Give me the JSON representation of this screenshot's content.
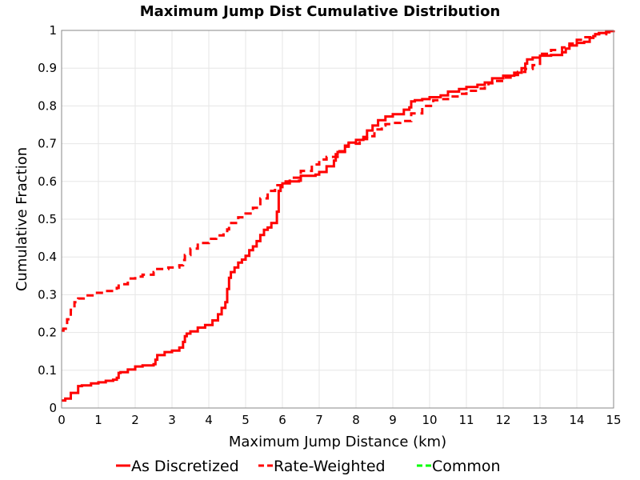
{
  "chart_data": {
    "type": "line",
    "title": "Maximum Jump Dist Cumulative Distribution",
    "xlabel": "Maximum Jump Distance (km)",
    "ylabel": "Cumulative Fraction",
    "xlim": [
      0,
      15
    ],
    "ylim": [
      0,
      1
    ],
    "x_ticks": [
      "0",
      "1",
      "2",
      "3",
      "4",
      "5",
      "6",
      "7",
      "8",
      "9",
      "10",
      "11",
      "12",
      "13",
      "14",
      "15"
    ],
    "y_ticks": [
      "0",
      "0.1",
      "0.2",
      "0.3",
      "0.4",
      "0.5",
      "0.6",
      "0.7",
      "0.8",
      "0.9",
      "1"
    ],
    "grid": true,
    "legend_position": "bottom",
    "series": [
      {
        "name": "As Discretized",
        "color": "#ff0000",
        "dash": "solid",
        "x": [
          0,
          0.1,
          0.25,
          0.45,
          0.55,
          0.8,
          1.0,
          1.2,
          1.4,
          1.5,
          1.55,
          1.6,
          1.8,
          2.0,
          2.2,
          2.5,
          2.55,
          2.6,
          2.8,
          3.0,
          3.2,
          3.3,
          3.35,
          3.4,
          3.5,
          3.7,
          3.9,
          4.1,
          4.25,
          4.35,
          4.45,
          4.5,
          4.55,
          4.6,
          4.7,
          4.8,
          4.9,
          5.0,
          5.1,
          5.2,
          5.3,
          5.4,
          5.5,
          5.6,
          5.7,
          5.85,
          5.9,
          5.95,
          6.0,
          6.2,
          6.45,
          6.5,
          6.9,
          7.0,
          7.2,
          7.4,
          7.45,
          7.5,
          7.7,
          7.8,
          8.0,
          8.2,
          8.3,
          8.45,
          8.6,
          8.8,
          9.0,
          9.3,
          9.45,
          9.5,
          9.6,
          9.8,
          10.0,
          10.3,
          10.5,
          10.8,
          11.0,
          11.3,
          11.5,
          11.7,
          12.0,
          12.3,
          12.5,
          12.6,
          12.65,
          12.8,
          13.0,
          13.3,
          13.6,
          13.7,
          13.8,
          14.0,
          14.2,
          14.35,
          14.45,
          14.5,
          14.6,
          14.8,
          15.0
        ],
        "y": [
          0.02,
          0.025,
          0.04,
          0.058,
          0.06,
          0.065,
          0.068,
          0.072,
          0.075,
          0.08,
          0.093,
          0.095,
          0.102,
          0.11,
          0.113,
          0.116,
          0.128,
          0.14,
          0.148,
          0.152,
          0.16,
          0.175,
          0.19,
          0.197,
          0.203,
          0.213,
          0.22,
          0.232,
          0.248,
          0.265,
          0.28,
          0.315,
          0.345,
          0.36,
          0.372,
          0.385,
          0.393,
          0.403,
          0.418,
          0.428,
          0.442,
          0.458,
          0.472,
          0.478,
          0.49,
          0.52,
          0.575,
          0.585,
          0.595,
          0.6,
          0.602,
          0.615,
          0.618,
          0.625,
          0.64,
          0.655,
          0.672,
          0.678,
          0.695,
          0.703,
          0.71,
          0.718,
          0.735,
          0.748,
          0.762,
          0.772,
          0.778,
          0.79,
          0.796,
          0.812,
          0.815,
          0.818,
          0.823,
          0.828,
          0.838,
          0.845,
          0.85,
          0.856,
          0.862,
          0.873,
          0.88,
          0.888,
          0.9,
          0.912,
          0.923,
          0.928,
          0.933,
          0.935,
          0.942,
          0.952,
          0.96,
          0.967,
          0.97,
          0.98,
          0.985,
          0.99,
          0.993,
          0.998,
          1.0
        ]
      },
      {
        "name": "Rate-Weighted",
        "color": "#ff0000",
        "dash": "dashed",
        "x": [
          0,
          0.05,
          0.15,
          0.25,
          0.35,
          0.45,
          0.6,
          0.9,
          1.2,
          1.5,
          1.55,
          1.8,
          2.0,
          2.2,
          2.5,
          2.6,
          2.9,
          3.2,
          3.3,
          3.35,
          3.5,
          3.7,
          4.0,
          4.2,
          4.4,
          4.5,
          4.55,
          4.8,
          5.0,
          5.2,
          5.4,
          5.6,
          5.8,
          6.0,
          6.2,
          6.5,
          6.8,
          7.0,
          7.2,
          7.5,
          7.7,
          7.8,
          8.1,
          8.3,
          8.5,
          8.7,
          8.8,
          9.0,
          9.2,
          9.5,
          9.8,
          10.1,
          10.3,
          10.5,
          10.8,
          11.0,
          11.3,
          11.5,
          11.6,
          11.8,
          12.0,
          12.2,
          12.4,
          12.6,
          12.8,
          13.0,
          13.3,
          13.6,
          13.8,
          14.0,
          14.2,
          14.5,
          14.8,
          15.0
        ],
        "y": [
          0.205,
          0.21,
          0.235,
          0.26,
          0.28,
          0.29,
          0.298,
          0.305,
          0.31,
          0.318,
          0.328,
          0.343,
          0.348,
          0.353,
          0.36,
          0.368,
          0.372,
          0.378,
          0.392,
          0.405,
          0.422,
          0.437,
          0.448,
          0.457,
          0.465,
          0.473,
          0.49,
          0.505,
          0.515,
          0.53,
          0.555,
          0.575,
          0.59,
          0.6,
          0.61,
          0.628,
          0.645,
          0.658,
          0.665,
          0.68,
          0.692,
          0.7,
          0.712,
          0.72,
          0.738,
          0.748,
          0.752,
          0.755,
          0.76,
          0.78,
          0.8,
          0.815,
          0.818,
          0.825,
          0.832,
          0.84,
          0.846,
          0.852,
          0.86,
          0.866,
          0.875,
          0.882,
          0.89,
          0.898,
          0.908,
          0.938,
          0.948,
          0.955,
          0.965,
          0.975,
          0.982,
          0.99,
          0.995,
          1.0
        ]
      },
      {
        "name": "Common",
        "color": "#00ff00",
        "dash": "dashed",
        "x": [],
        "y": []
      }
    ]
  }
}
